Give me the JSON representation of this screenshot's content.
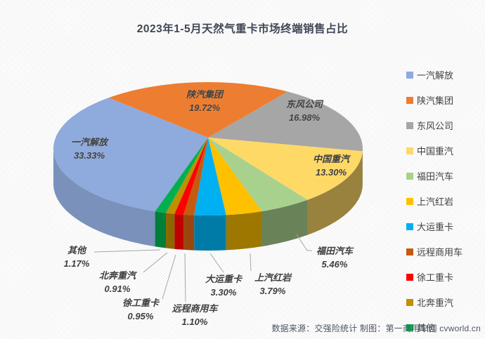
{
  "title": "2023年1-5月天然气重卡市场终端销售占比",
  "footer": {
    "credit": "数据来源：交强险统计 制图：第一商用车网 cvworld.cn"
  },
  "chart_data": {
    "type": "pie",
    "style": "3d",
    "title": "2023年1-5月天然气重卡市场终端销售占比",
    "unit": "%",
    "legend_position": "right",
    "labels_format": "name + percent",
    "slices": [
      {
        "name": "一汽解放",
        "value": 33.33,
        "pct_label": "33.33%",
        "color": "#8FAADC",
        "label_placement": "inside"
      },
      {
        "name": "陕汽集团",
        "value": 19.72,
        "pct_label": "19.72%",
        "color": "#ED7D31",
        "label_placement": "inside"
      },
      {
        "name": "东风公司",
        "value": 16.98,
        "pct_label": "16.98%",
        "color": "#A6A6A6",
        "label_placement": "inside"
      },
      {
        "name": "中国重汽",
        "value": 13.3,
        "pct_label": "13.30%",
        "color": "#FFD966",
        "label_placement": "inside"
      },
      {
        "name": "福田汽车",
        "value": 5.46,
        "pct_label": "5.46%",
        "color": "#A9D18E",
        "label_placement": "outside"
      },
      {
        "name": "上汽红岩",
        "value": 3.79,
        "pct_label": "3.79%",
        "color": "#FFC000",
        "label_placement": "outside"
      },
      {
        "name": "大运重卡",
        "value": 3.3,
        "pct_label": "3.30%",
        "color": "#00B0F0",
        "label_placement": "outside"
      },
      {
        "name": "远程商用车",
        "value": 1.1,
        "pct_label": "1.10%",
        "color": "#C55A11",
        "label_placement": "outside"
      },
      {
        "name": "徐工重卡",
        "value": 0.95,
        "pct_label": "0.95%",
        "color": "#FF0000",
        "label_placement": "outside"
      },
      {
        "name": "北奔重汽",
        "value": 0.91,
        "pct_label": "0.91%",
        "color": "#BF9000",
        "label_placement": "outside"
      },
      {
        "name": "其他",
        "value": 1.17,
        "pct_label": "1.17%",
        "color": "#00B050",
        "label_placement": "outside"
      }
    ]
  }
}
